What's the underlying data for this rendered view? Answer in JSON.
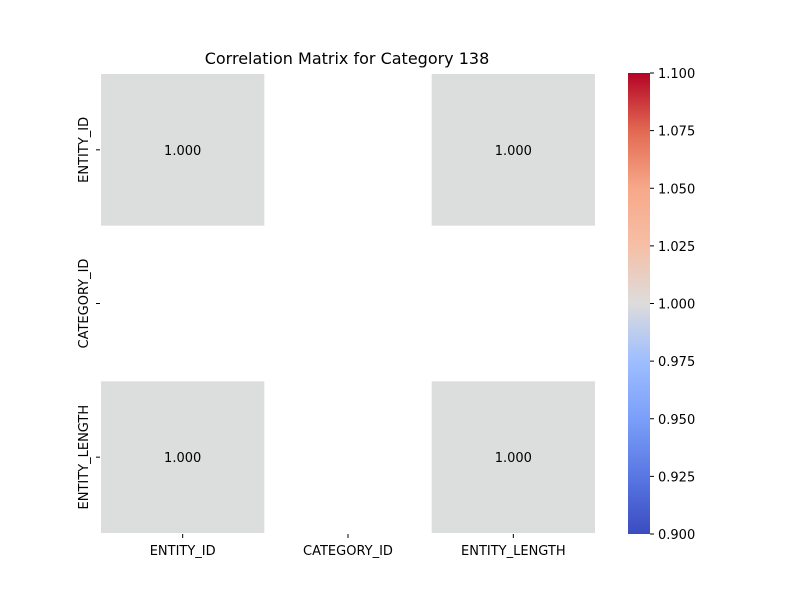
{
  "chart_data": {
    "type": "heatmap",
    "title": "Correlation Matrix for Category 138",
    "xlabel": "",
    "ylabel": "",
    "x_categories": [
      "ENTITY_ID",
      "CATEGORY_ID",
      "ENTITY_LENGTH"
    ],
    "y_categories": [
      "ENTITY_ID",
      "CATEGORY_ID",
      "ENTITY_LENGTH"
    ],
    "values": [
      [
        1.0,
        null,
        1.0
      ],
      [
        null,
        null,
        null
      ],
      [
        1.0,
        null,
        1.0
      ]
    ],
    "value_format": "1.000",
    "colormap": "coolwarm",
    "colorbar": {
      "range": [
        0.9,
        1.1
      ],
      "ticks": [
        "0.900",
        "0.925",
        "0.950",
        "0.975",
        "1.000",
        "1.025",
        "1.050",
        "1.075",
        "1.100"
      ],
      "tick_values": [
        0.9,
        0.925,
        0.95,
        0.975,
        1.0,
        1.025,
        1.05,
        1.075,
        1.1
      ],
      "position": "right"
    },
    "cell_color": "#dcdddd",
    "grid": false,
    "legend": "none"
  }
}
